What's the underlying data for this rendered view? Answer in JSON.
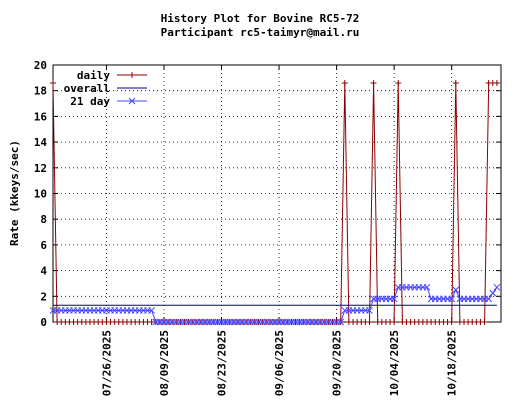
{
  "chart_data": {
    "type": "line",
    "title": "History Plot for Bovine RC5-72",
    "subtitle": "Participant rc5-taimyr@mail.ru",
    "ylabel": "Rate (kkeys/sec)",
    "xlabel": "",
    "ylim": [
      0,
      20
    ],
    "yticks": [
      0,
      2,
      4,
      6,
      8,
      10,
      12,
      14,
      16,
      18,
      20
    ],
    "xlim": [
      "2025-07-13",
      "2025-10-30"
    ],
    "xticks": [
      "07/26/2025",
      "08/09/2025",
      "08/23/2025",
      "09/06/2025",
      "09/20/2025",
      "10/04/2025",
      "10/18/2025"
    ],
    "grid": true,
    "legend_position": "top-left",
    "series": [
      {
        "name": "daily",
        "color": "#8b0000",
        "marker": "plus",
        "points": [
          [
            "2025-07-13",
            18.6
          ],
          [
            "2025-07-14",
            0
          ],
          [
            "2025-09-21",
            0
          ],
          [
            "2025-09-22",
            18.6
          ],
          [
            "2025-09-23",
            0
          ],
          [
            "2025-09-28",
            0
          ],
          [
            "2025-09-29",
            18.6
          ],
          [
            "2025-09-30",
            0
          ],
          [
            "2025-10-04",
            0
          ],
          [
            "2025-10-05",
            18.6
          ],
          [
            "2025-10-06",
            0
          ],
          [
            "2025-10-18",
            0
          ],
          [
            "2025-10-19",
            18.6
          ],
          [
            "2025-10-20",
            0
          ],
          [
            "2025-10-26",
            0
          ],
          [
            "2025-10-27",
            18.6
          ],
          [
            "2025-10-29",
            18.6
          ]
        ]
      },
      {
        "name": "overall",
        "color": "#00008b",
        "marker": "none",
        "points": [
          [
            "2025-07-13",
            1.3
          ],
          [
            "2025-10-29",
            1.3
          ]
        ]
      },
      {
        "name": "21 day",
        "color": "#4444ff",
        "marker": "x",
        "points": [
          [
            "2025-07-13",
            0.9
          ],
          [
            "2025-08-05",
            0.9
          ],
          [
            "2025-08-06",
            0.9
          ],
          [
            "2025-08-07",
            0
          ],
          [
            "2025-09-21",
            0
          ],
          [
            "2025-09-22",
            0.9
          ],
          [
            "2025-09-28",
            0.9
          ],
          [
            "2025-09-29",
            1.8
          ],
          [
            "2025-10-04",
            1.8
          ],
          [
            "2025-10-05",
            2.7
          ],
          [
            "2025-10-12",
            2.7
          ],
          [
            "2025-10-13",
            1.8
          ],
          [
            "2025-10-18",
            1.8
          ],
          [
            "2025-10-19",
            2.5
          ],
          [
            "2025-10-20",
            1.8
          ],
          [
            "2025-10-27",
            1.8
          ],
          [
            "2025-10-29",
            2.7
          ]
        ]
      }
    ]
  }
}
